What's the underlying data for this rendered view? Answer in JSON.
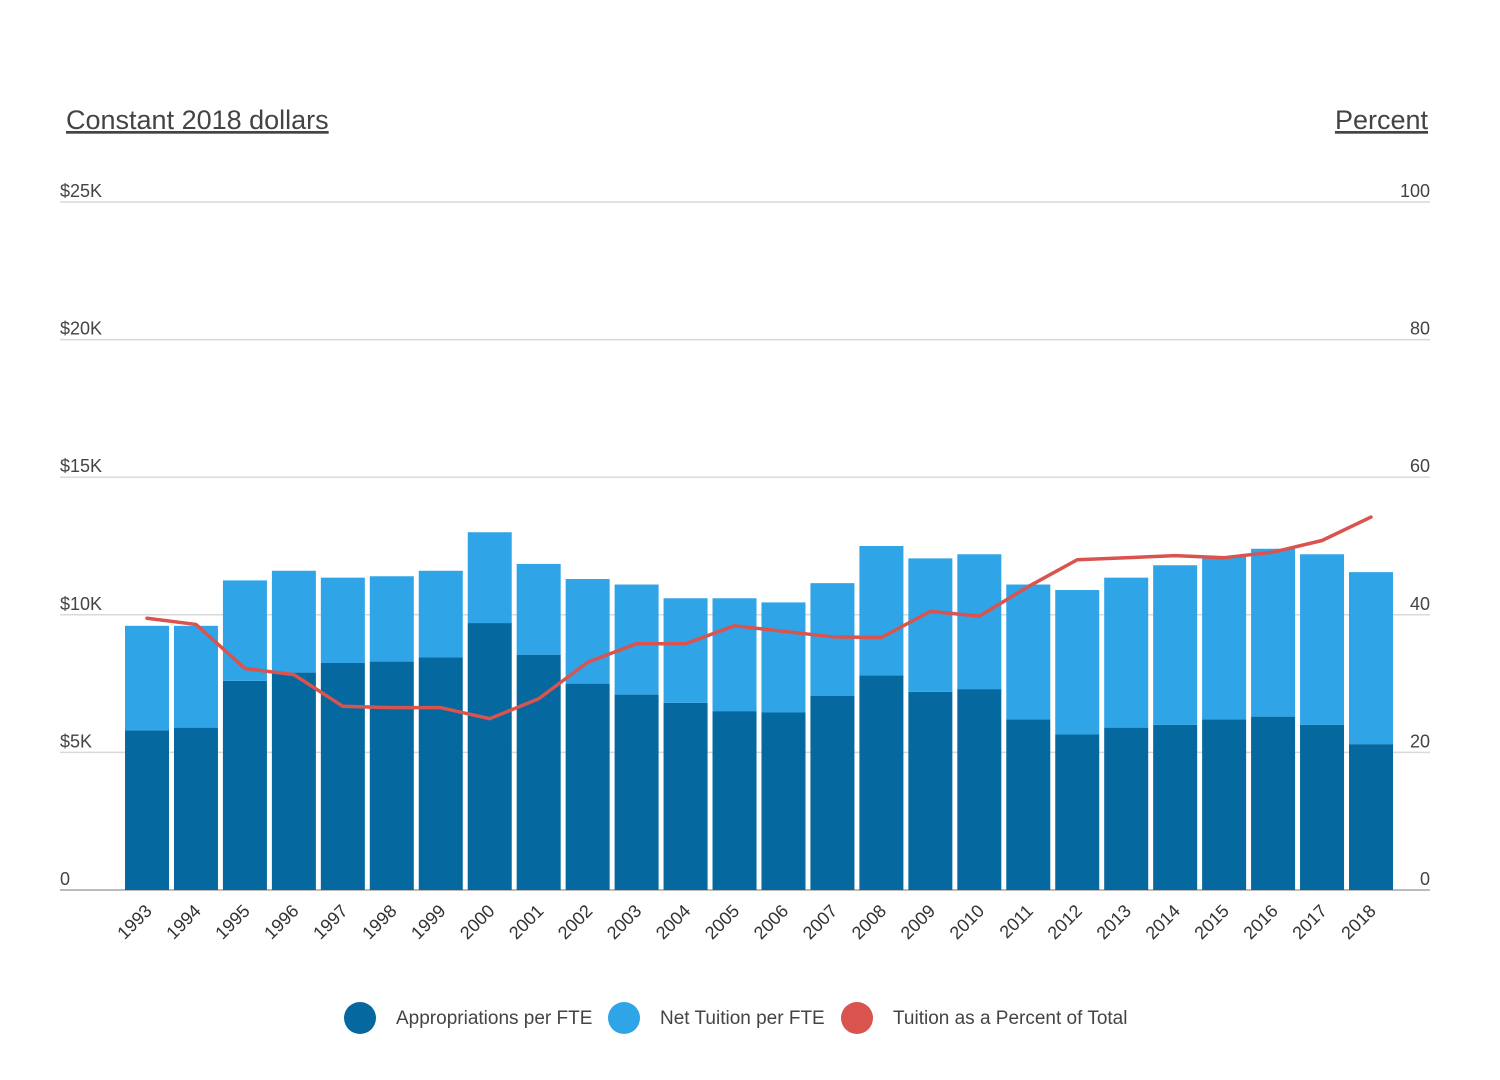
{
  "chart_data": {
    "type": "bar",
    "stacked": true,
    "left_axis_title": "Constant 2018 dollars",
    "right_axis_title": "Percent",
    "categories": [
      "1993",
      "1994",
      "1995",
      "1996",
      "1997",
      "1998",
      "1999",
      "2000",
      "2001",
      "2002",
      "2003",
      "2004",
      "2005",
      "2006",
      "2007",
      "2008",
      "2009",
      "2010",
      "2011",
      "2012",
      "2013",
      "2014",
      "2015",
      "2016",
      "2017",
      "2018"
    ],
    "series": [
      {
        "name": "Appropriations per FTE",
        "type": "bar",
        "axis": "left",
        "color": "#05689e",
        "values": [
          5800,
          5900,
          7600,
          7900,
          8250,
          8300,
          8450,
          9700,
          8550,
          7500,
          7100,
          6800,
          6500,
          6450,
          7050,
          7800,
          7200,
          7300,
          6200,
          5650,
          5900,
          6000,
          6200,
          6300,
          6000,
          5300
        ]
      },
      {
        "name": "Net Tuition per FTE",
        "type": "bar",
        "axis": "left",
        "color": "#2fa4e7",
        "values": [
          3800,
          3700,
          3650,
          3700,
          3100,
          3100,
          3150,
          3300,
          3300,
          3800,
          4000,
          3800,
          4100,
          4000,
          4100,
          4700,
          4850,
          4900,
          4900,
          5250,
          5450,
          5800,
          5900,
          6100,
          6200,
          6250
        ]
      },
      {
        "name": "Tuition as a Percent of Total",
        "type": "line",
        "axis": "right",
        "color": "#d9534f",
        "values": [
          39.5,
          38.6,
          32.2,
          31.3,
          26.7,
          26.5,
          26.5,
          24.9,
          27.8,
          33.1,
          35.8,
          35.8,
          38.4,
          37.6,
          36.8,
          36.7,
          40.5,
          39.8,
          44.1,
          48.0,
          48.3,
          48.6,
          48.3,
          49.1,
          50.8,
          54.2
        ]
      }
    ],
    "left_axis": {
      "ticks": [
        0,
        5000,
        10000,
        15000,
        20000,
        25000
      ],
      "tick_labels": [
        "0",
        "$5K",
        "$10K",
        "$15K",
        "$20K",
        "$25K"
      ],
      "ylim": [
        0,
        25000
      ]
    },
    "right_axis": {
      "ticks": [
        0,
        20,
        40,
        60,
        80,
        100
      ],
      "tick_labels": [
        "0",
        "20",
        "40",
        "60",
        "80",
        "100"
      ],
      "ylim": [
        0,
        100
      ]
    },
    "grid": true,
    "legend_position": "bottom-center"
  }
}
